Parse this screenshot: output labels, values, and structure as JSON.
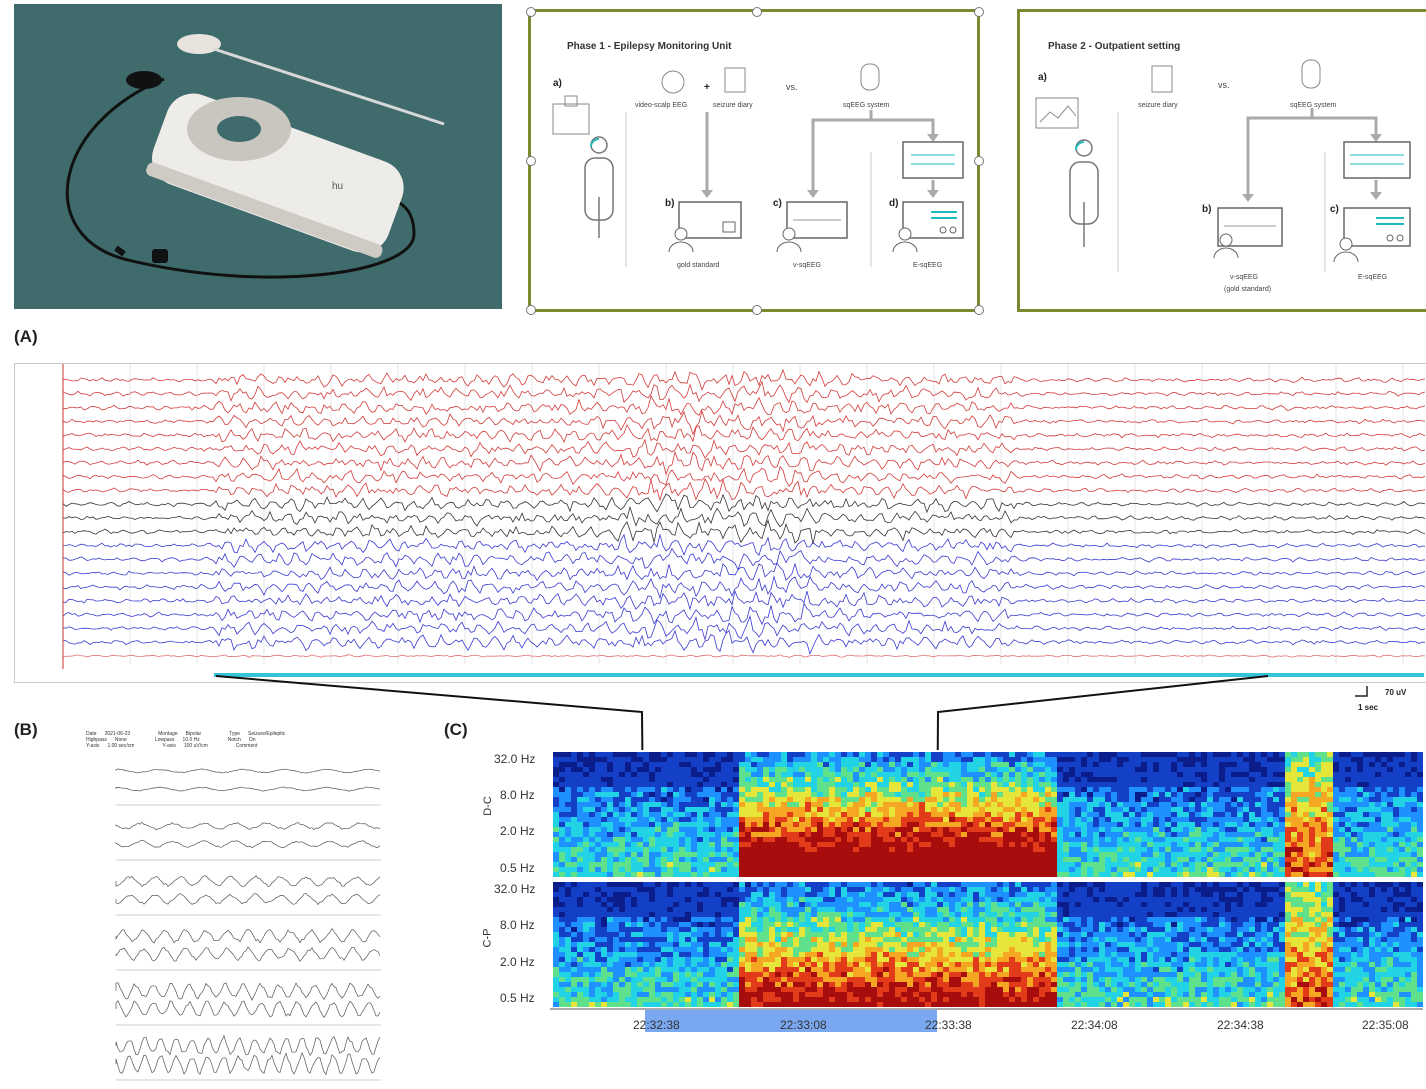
{
  "panels": {
    "a_label": "(A)",
    "b_label": "(B)",
    "c_label": "(C)"
  },
  "phase1": {
    "title": "Phase 1 - Epilepsy Monitoring Unit",
    "a": "a)",
    "b": "b)",
    "c": "c)",
    "d": "d)",
    "video_eeg": "video-scalp EEG",
    "plus": "+",
    "seizure_diary": "seizure diary",
    "vs": "vs.",
    "sqeeg_system": "sqEEG system",
    "gold_standard": "gold standard",
    "v_sqeeg": "v-sqEEG",
    "e_sqeeg": "E-sqEEG"
  },
  "phase2": {
    "title": "Phase 2 - Outpatient setting",
    "a": "a)",
    "b": "b)",
    "c": "c)",
    "seizure_diary": "seizure diary",
    "vs": "vs.",
    "sqeeg_system": "sqEEG system",
    "v_sqeeg": "v-sqEEG",
    "gold_standard_paren": "(gold standard)",
    "e_sqeeg": "E-sqEEG"
  },
  "eeg": {
    "scale_value": "70 uV",
    "scale_time": "1 sec"
  },
  "panel_b": {
    "header_line1": [
      "Date",
      "2021-06-23",
      "Montage",
      "Bipolar",
      "Type",
      "Seizure/Epileptic"
    ],
    "header_line2": [
      "Highpass",
      "None",
      "Lowpass",
      "10.0 Hz",
      "Notch",
      "On"
    ],
    "header_line3": [
      "Y-axis",
      "1.00 sec/cm",
      "Y-axis",
      "100 uV/cm",
      "",
      "Comment"
    ]
  },
  "spectrogram": {
    "top_label": "D-C",
    "bottom_label": "C-P",
    "freq_ticks": [
      "32.0 Hz",
      "8.0 Hz",
      "2.0 Hz",
      "0.5 Hz"
    ],
    "time_ticks": [
      "22:32:38",
      "22:33:08",
      "22:33:38",
      "22:34:08",
      "22:34:38",
      "22:35:08"
    ]
  },
  "colors": {
    "phase_border": "#7a8a2e",
    "eeg_red": "#d33b3b",
    "eeg_black": "#333333",
    "eeg_blue": "#3a3ad0",
    "timeline": "#33c4d6",
    "selection": "#7aa8f0"
  }
}
